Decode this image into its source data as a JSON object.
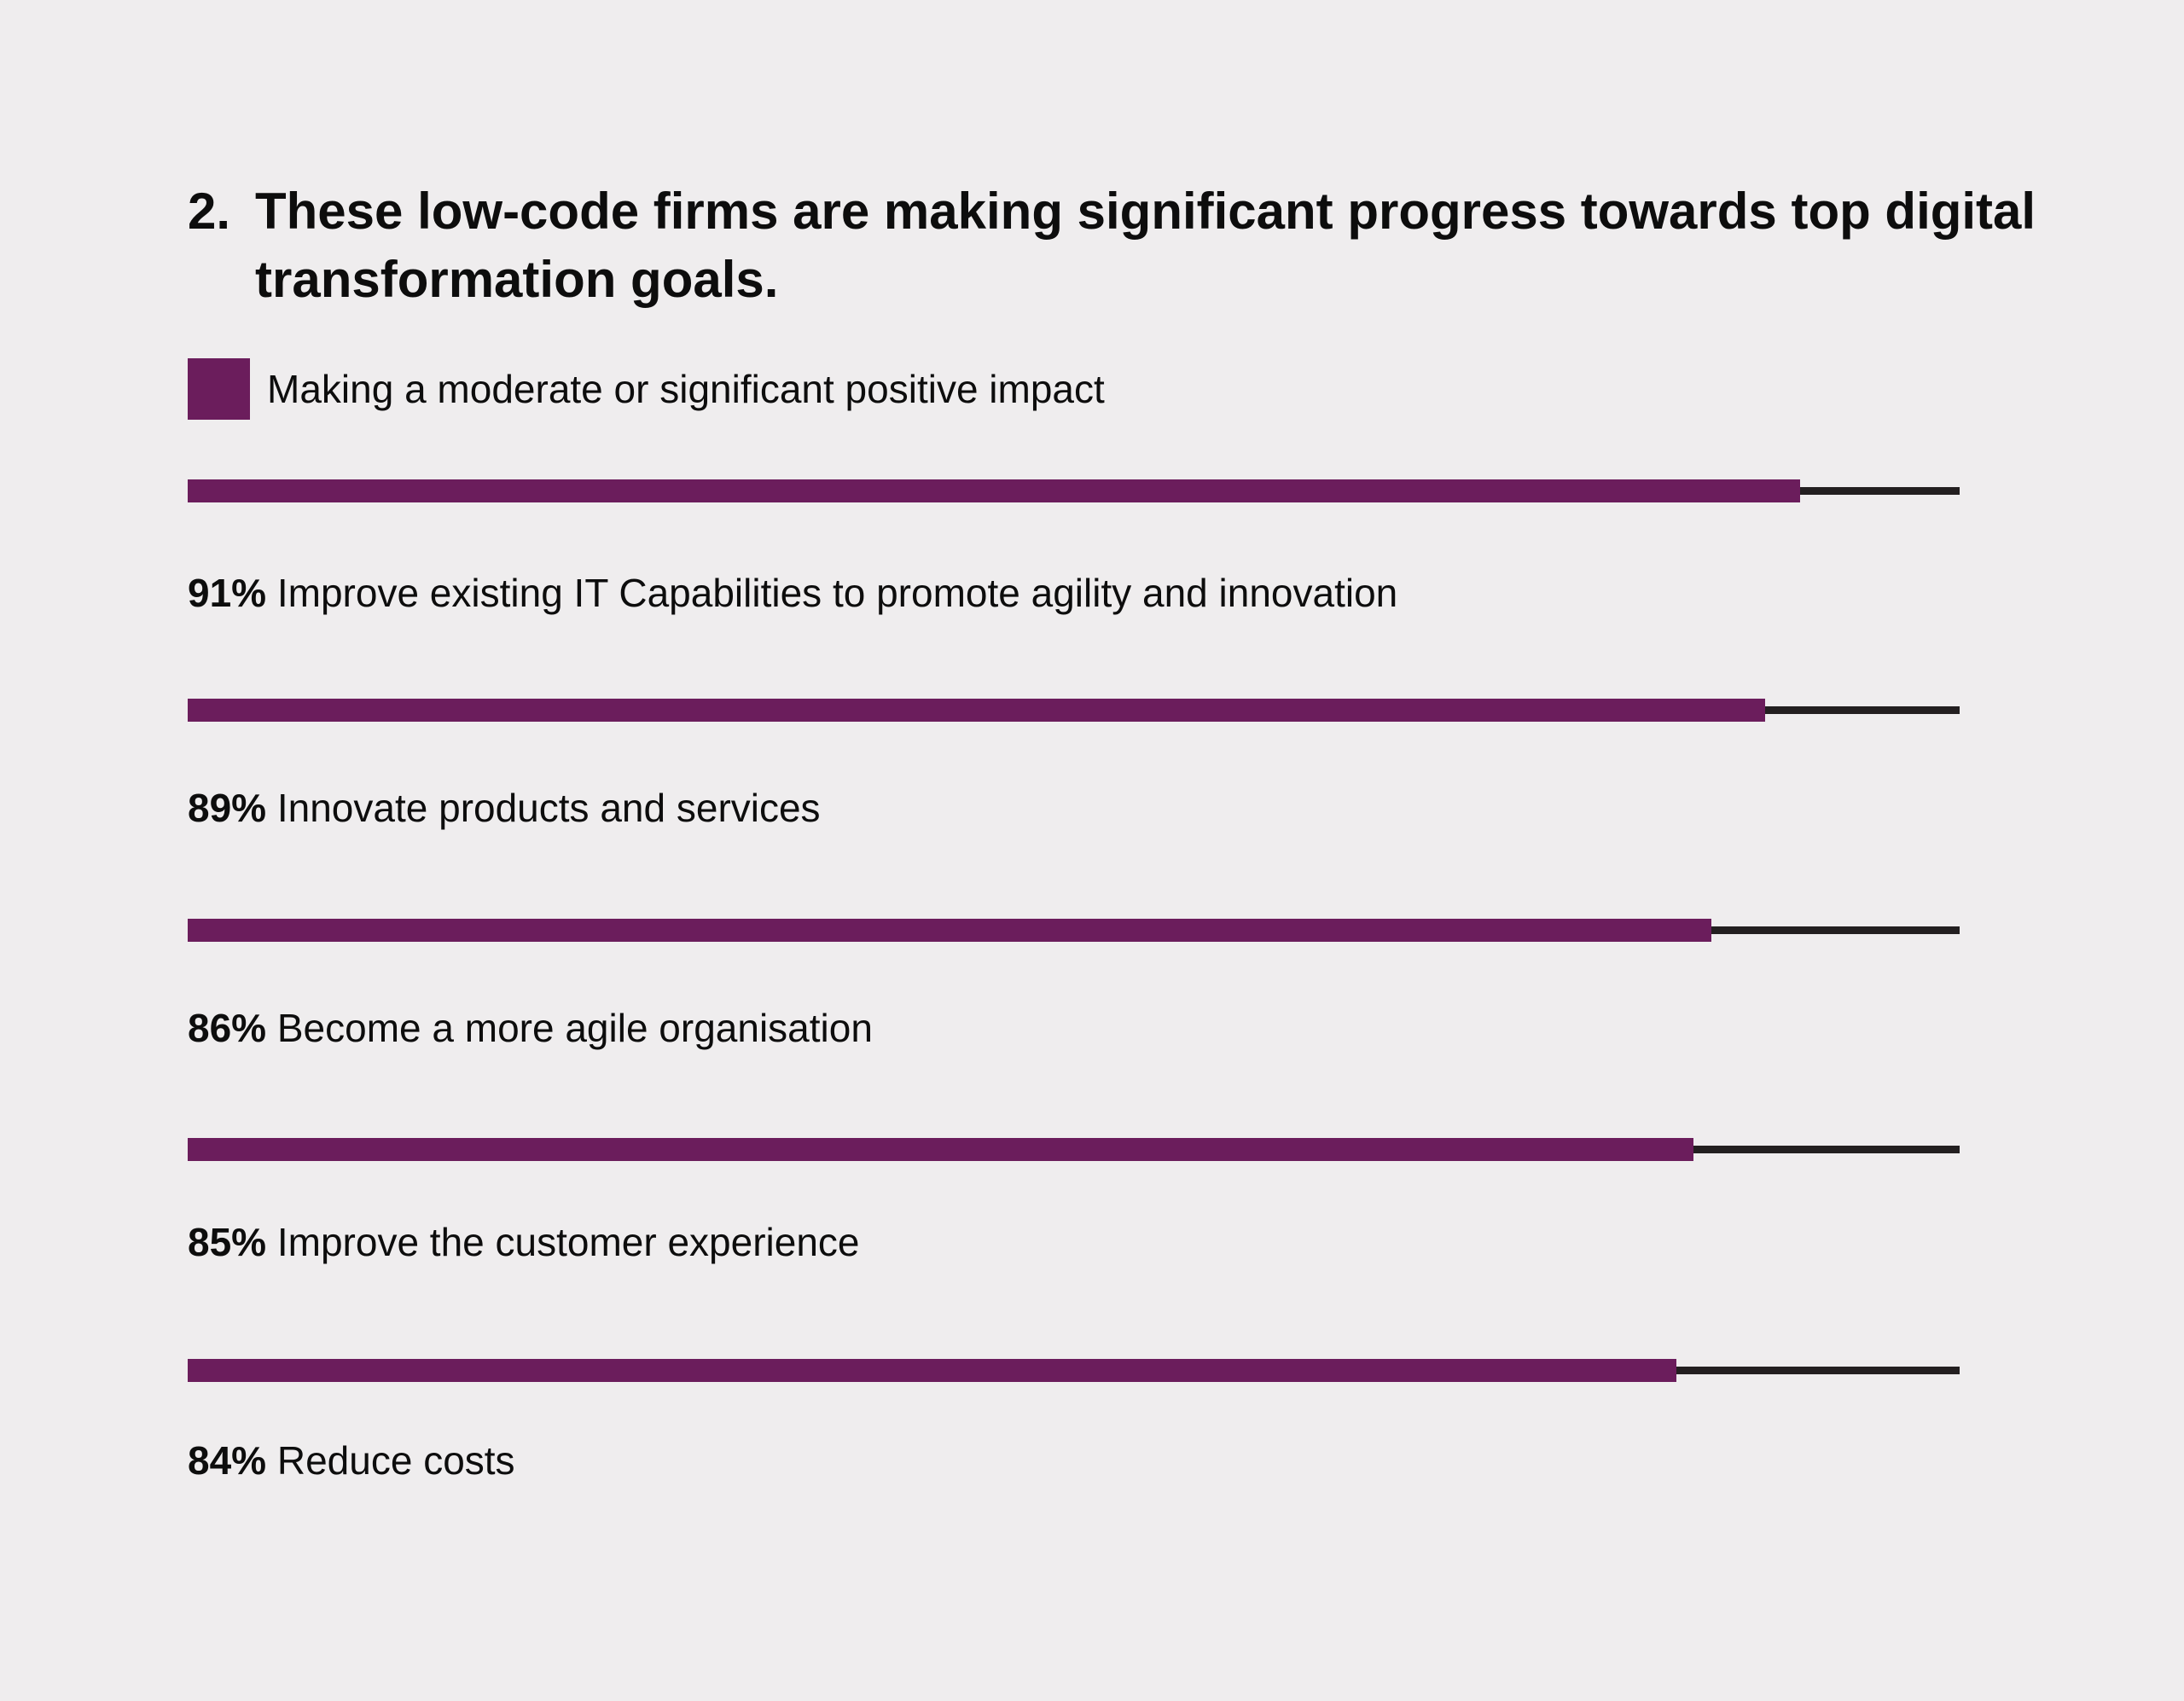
{
  "title_number": "2.",
  "title": "These low-code firms are making significant progress towards top digital transformation goals.",
  "colors": {
    "background": "#efedee",
    "bar": "#6b1d5c",
    "track": "#231f20"
  },
  "legend": {
    "label": "Making a moderate or significant positive impact",
    "color": "#6b1d5c"
  },
  "chart_data": {
    "type": "bar",
    "orientation": "horizontal",
    "title": "These low-code firms are making significant progress towards top digital transformation goals.",
    "xlim": [
      0,
      100
    ],
    "unit": "%",
    "series": [
      {
        "name": "Making a moderate or significant positive impact",
        "values": [
          91,
          89,
          86,
          85,
          84
        ]
      }
    ],
    "categories": [
      "Improve existing IT Capabilities to promote agility and innovation",
      "Innovate products and services",
      "Become a more agile organisation",
      "Improve the customer experience",
      "Reduce costs"
    ],
    "value_labels": [
      "91%",
      "89%",
      "86%",
      "85%",
      "84%"
    ]
  }
}
